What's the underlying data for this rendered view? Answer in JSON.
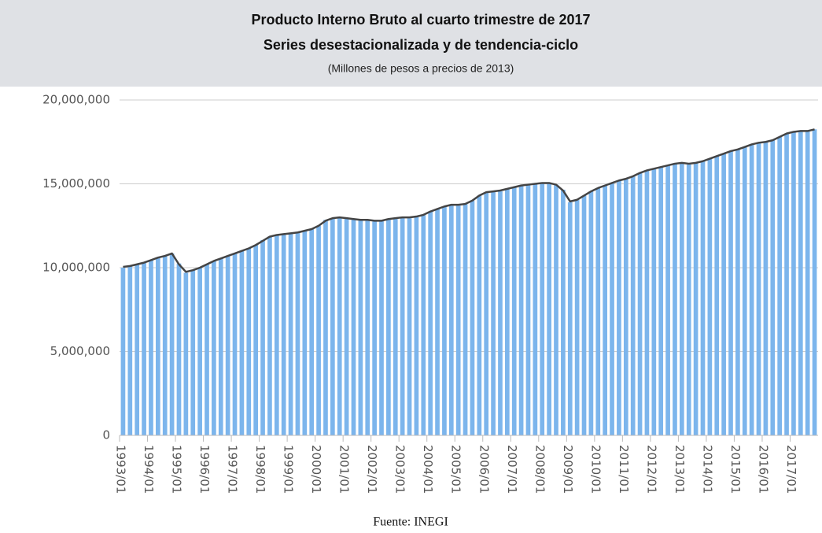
{
  "chart_data": {
    "type": "bar+line",
    "title": "Producto Interno Bruto al cuarto trimestre de 2017",
    "subtitle": "Series desestacionalizada y de tendencia-ciclo",
    "units": "(Millones de pesos a precios de 2013)",
    "source": "Fuente: INEGI",
    "categories": [
      "1993/01",
      null,
      null,
      null,
      "1994/01",
      null,
      null,
      null,
      "1995/01",
      null,
      null,
      null,
      "1996/01",
      null,
      null,
      null,
      "1997/01",
      null,
      null,
      null,
      "1998/01",
      null,
      null,
      null,
      "1999/01",
      null,
      null,
      null,
      "2000/01",
      null,
      null,
      null,
      "2001/01",
      null,
      null,
      null,
      "2002/01",
      null,
      null,
      null,
      "2003/01",
      null,
      null,
      null,
      "2004/01",
      null,
      null,
      null,
      "2005/01",
      null,
      null,
      null,
      "2006/01",
      null,
      null,
      null,
      "2007/01",
      null,
      null,
      null,
      "2008/01",
      null,
      null,
      null,
      "2009/01",
      null,
      null,
      null,
      "2010/01",
      null,
      null,
      null,
      "2011/01",
      null,
      null,
      null,
      "2012/01",
      null,
      null,
      null,
      "2013/01",
      null,
      null,
      null,
      "2014/01",
      null,
      null,
      null,
      "2015/01",
      null,
      null,
      null,
      "2016/01",
      null,
      null,
      null,
      "2017/01",
      null,
      null,
      null
    ],
    "series": [
      {
        "type": "bar",
        "color": "#7cb5ec",
        "values": [
          10000000,
          10100000,
          10200000,
          10300000,
          10450000,
          10600000,
          10700000,
          10850000,
          10250000,
          9700000,
          9850000,
          10000000,
          10200000,
          10400000,
          10550000,
          10700000,
          10850000,
          11000000,
          11150000,
          11350000,
          11650000,
          11850000,
          11950000,
          12000000,
          12050000,
          12100000,
          12200000,
          12300000,
          12500000,
          12850000,
          12950000,
          12950000,
          12950000,
          12900000,
          12850000,
          12800000,
          12750000,
          12800000,
          12900000,
          12950000,
          13000000,
          12950000,
          13050000,
          13150000,
          13350000,
          13500000,
          13650000,
          13750000,
          13700000,
          13800000,
          14000000,
          14300000,
          14500000,
          14550000,
          14550000,
          14700000,
          14800000,
          14900000,
          14950000,
          15000000,
          15050000,
          15050000,
          14950000,
          14650000,
          13900000,
          14050000,
          14300000,
          14550000,
          14750000,
          14900000,
          15050000,
          15200000,
          15300000,
          15450000,
          15650000,
          15800000,
          15900000,
          16000000,
          16100000,
          16200000,
          16250000,
          16150000,
          16250000,
          16350000,
          16500000,
          16650000,
          16800000,
          16950000,
          17050000,
          17200000,
          17350000,
          17450000,
          17500000,
          17600000,
          17800000,
          18000000,
          18100000,
          18100000,
          18150000,
          18250000
        ]
      },
      {
        "type": "line",
        "color": "#444444",
        "values": [
          10050000,
          10100000,
          10200000,
          10300000,
          10450000,
          10600000,
          10700000,
          10850000,
          10200000,
          9750000,
          9850000,
          10000000,
          10200000,
          10400000,
          10550000,
          10700000,
          10850000,
          11000000,
          11150000,
          11350000,
          11600000,
          11850000,
          11950000,
          12000000,
          12050000,
          12100000,
          12200000,
          12300000,
          12500000,
          12800000,
          12950000,
          13000000,
          12950000,
          12900000,
          12850000,
          12850000,
          12800000,
          12800000,
          12900000,
          12950000,
          13000000,
          13000000,
          13050000,
          13150000,
          13350000,
          13500000,
          13650000,
          13750000,
          13750000,
          13800000,
          14000000,
          14300000,
          14500000,
          14550000,
          14600000,
          14700000,
          14800000,
          14900000,
          14950000,
          15000000,
          15050000,
          15050000,
          14950000,
          14600000,
          13950000,
          14050000,
          14300000,
          14550000,
          14750000,
          14900000,
          15050000,
          15200000,
          15300000,
          15450000,
          15650000,
          15800000,
          15900000,
          16000000,
          16100000,
          16200000,
          16250000,
          16200000,
          16250000,
          16350000,
          16500000,
          16650000,
          16800000,
          16950000,
          17050000,
          17200000,
          17350000,
          17450000,
          17500000,
          17600000,
          17800000,
          18000000,
          18100000,
          18150000,
          18150000,
          18250000
        ]
      }
    ],
    "ylim": [
      0,
      20000000
    ],
    "yticks": [
      0,
      {
        "value": 5000000,
        "label": "5,000,000"
      },
      {
        "value": 10000000,
        "label": "10,000,000"
      },
      {
        "value": 15000000,
        "label": "15,000,000"
      },
      {
        "value": 20000000,
        "label": "20,000,000"
      }
    ],
    "grid": true
  }
}
